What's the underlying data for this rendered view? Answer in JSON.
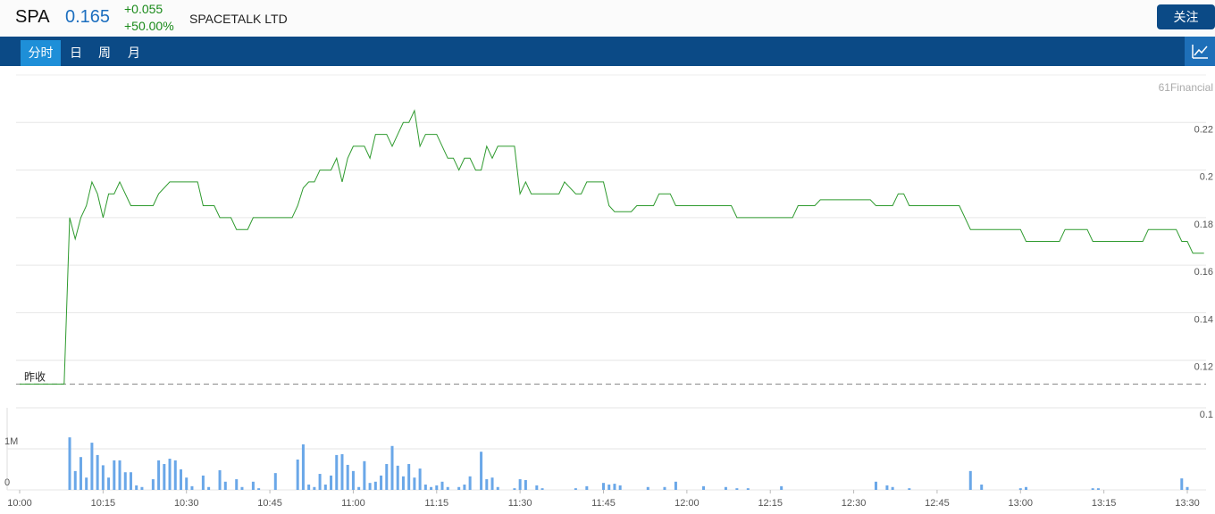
{
  "header": {
    "symbol": "SPA",
    "price": "0.165",
    "change": "+0.055",
    "change_pct": "+50.00%",
    "name": "SPACETALK LTD",
    "follow_button": "关注"
  },
  "tabs": [
    "分时",
    "日",
    "周",
    "月"
  ],
  "chart_data": [
    {
      "type": "line",
      "watermark": "61Financial",
      "color": "#2e9a2e",
      "xlim": [
        "10:00",
        "13:30"
      ],
      "ylim": [
        0.1,
        0.24
      ],
      "yticks": [
        0.1,
        0.12,
        0.14,
        0.16,
        0.18,
        0.2,
        0.22
      ],
      "grid": true,
      "prev_close": 0.11,
      "prev_close_label": "昨收",
      "x": [
        "10:00",
        "10:08",
        "10:09",
        "10:10",
        "10:11",
        "10:12",
        "10:13",
        "10:14",
        "10:15",
        "10:16",
        "10:17",
        "10:18",
        "10:20",
        "10:24",
        "10:25",
        "10:27",
        "10:32",
        "10:33",
        "10:35",
        "10:36",
        "10:38",
        "10:39",
        "10:41",
        "10:42",
        "10:49",
        "10:50",
        "10:51",
        "10:52",
        "10:53",
        "10:54",
        "10:56",
        "10:57",
        "10:58",
        "10:59",
        "11:00",
        "11:02",
        "11:03",
        "11:04",
        "11:06",
        "11:07",
        "11:08",
        "11:09",
        "11:10",
        "11:11",
        "11:12",
        "11:13",
        "11:15",
        "11:16",
        "11:17",
        "11:18",
        "11:19",
        "11:20",
        "11:21",
        "11:22",
        "11:23",
        "11:24",
        "11:25",
        "11:26",
        "11:29",
        "11:30",
        "11:31",
        "11:32",
        "11:37",
        "11:38",
        "11:40",
        "11:41",
        "11:42",
        "11:45",
        "11:46",
        "11:47",
        "11:50",
        "11:51",
        "11:54",
        "11:55",
        "11:57",
        "11:58",
        "12:08",
        "12:09",
        "12:19",
        "12:20",
        "12:23",
        "12:24",
        "12:33",
        "12:34",
        "12:37",
        "12:38",
        "12:39",
        "12:40",
        "12:49",
        "12:51",
        "13:00",
        "13:01",
        "13:07",
        "13:08",
        "13:12",
        "13:13",
        "13:22",
        "13:23",
        "13:28",
        "13:29",
        "13:30",
        "13:31",
        "13:33"
      ],
      "values": [
        0.11,
        0.11,
        0.18,
        0.171,
        0.18,
        0.185,
        0.195,
        0.19,
        0.18,
        0.19,
        0.19,
        0.195,
        0.185,
        0.185,
        0.19,
        0.195,
        0.195,
        0.185,
        0.185,
        0.18,
        0.18,
        0.175,
        0.175,
        0.18,
        0.18,
        0.185,
        0.1925,
        0.195,
        0.195,
        0.2,
        0.2,
        0.205,
        0.195,
        0.205,
        0.21,
        0.21,
        0.205,
        0.215,
        0.215,
        0.21,
        0.215,
        0.22,
        0.22,
        0.225,
        0.21,
        0.215,
        0.215,
        0.21,
        0.205,
        0.205,
        0.2,
        0.205,
        0.205,
        0.2,
        0.2,
        0.21,
        0.205,
        0.21,
        0.21,
        0.19,
        0.195,
        0.19,
        0.19,
        0.195,
        0.19,
        0.19,
        0.195,
        0.195,
        0.185,
        0.1825,
        0.1825,
        0.185,
        0.185,
        0.19,
        0.19,
        0.185,
        0.185,
        0.18,
        0.18,
        0.185,
        0.185,
        0.1875,
        0.1875,
        0.185,
        0.185,
        0.19,
        0.19,
        0.185,
        0.185,
        0.175,
        0.175,
        0.17,
        0.17,
        0.175,
        0.175,
        0.17,
        0.17,
        0.175,
        0.175,
        0.17,
        0.17,
        0.165,
        0.165
      ]
    },
    {
      "type": "bar",
      "color": "#6aa7e8",
      "xlim": [
        "10:00",
        "13:30"
      ],
      "xticks": [
        "10:00",
        "10:15",
        "10:30",
        "10:45",
        "11:00",
        "11:15",
        "11:30",
        "11:45",
        "12:00",
        "12:15",
        "12:30",
        "12:45",
        "13:00",
        "13:15",
        "13:30"
      ],
      "ylim": [
        0,
        2000000
      ],
      "yticks": [
        0,
        {
          "value": 1000000,
          "label": "1M"
        }
      ],
      "x": [
        "10:09",
        "10:10",
        "10:11",
        "10:12",
        "10:13",
        "10:14",
        "10:15",
        "10:16",
        "10:17",
        "10:18",
        "10:19",
        "10:20",
        "10:21",
        "10:22",
        "10:24",
        "10:25",
        "10:26",
        "10:27",
        "10:28",
        "10:29",
        "10:30",
        "10:31",
        "10:33",
        "10:34",
        "10:36",
        "10:37",
        "10:39",
        "10:40",
        "10:42",
        "10:43",
        "10:46",
        "10:50",
        "10:51",
        "10:52",
        "10:53",
        "10:54",
        "10:55",
        "10:56",
        "10:57",
        "10:58",
        "10:59",
        "11:00",
        "11:01",
        "11:02",
        "11:03",
        "11:04",
        "11:05",
        "11:06",
        "11:07",
        "11:08",
        "11:09",
        "11:10",
        "11:11",
        "11:12",
        "11:13",
        "11:14",
        "11:15",
        "11:16",
        "11:17",
        "11:19",
        "11:20",
        "11:21",
        "11:23",
        "11:24",
        "11:25",
        "11:26",
        "11:29",
        "11:30",
        "11:31",
        "11:33",
        "11:34",
        "11:40",
        "11:42",
        "11:45",
        "11:46",
        "11:47",
        "11:48",
        "11:53",
        "11:56",
        "11:58",
        "12:03",
        "12:07",
        "12:09",
        "12:11",
        "12:17",
        "12:34",
        "12:36",
        "12:37",
        "12:40",
        "12:51",
        "12:53",
        "13:00",
        "13:01",
        "13:13",
        "13:14",
        "13:29",
        "13:30"
      ],
      "values": [
        1280000,
        460000,
        800000,
        300000,
        1150000,
        850000,
        600000,
        300000,
        720000,
        720000,
        430000,
        430000,
        110000,
        70000,
        260000,
        720000,
        630000,
        760000,
        720000,
        500000,
        300000,
        90000,
        350000,
        70000,
        480000,
        200000,
        260000,
        70000,
        200000,
        40000,
        410000,
        740000,
        1110000,
        130000,
        70000,
        390000,
        130000,
        350000,
        850000,
        870000,
        610000,
        460000,
        70000,
        700000,
        170000,
        200000,
        350000,
        630000,
        1070000,
        590000,
        330000,
        630000,
        300000,
        520000,
        130000,
        70000,
        110000,
        200000,
        70000,
        70000,
        130000,
        330000,
        930000,
        260000,
        300000,
        70000,
        40000,
        260000,
        240000,
        110000,
        40000,
        40000,
        90000,
        170000,
        130000,
        150000,
        110000,
        70000,
        70000,
        200000,
        90000,
        70000,
        40000,
        40000,
        90000,
        200000,
        110000,
        70000,
        40000,
        460000,
        130000,
        40000,
        70000,
        40000,
        40000,
        280000,
        70000
      ]
    }
  ]
}
